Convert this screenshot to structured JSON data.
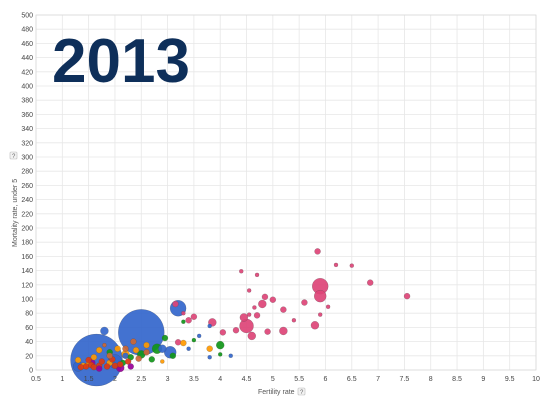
{
  "chart_data": {
    "type": "scatter",
    "year_label": "2013",
    "xlabel": "Fertility rate",
    "ylabel": "Mortality rate, under 5",
    "help_glyph": "?",
    "xlim": [
      0.5,
      10
    ],
    "ylim": [
      0,
      500
    ],
    "x_ticks": [
      "0.5",
      "1",
      "1.5",
      "2",
      "2.5",
      "3",
      "3.5",
      "4",
      "4.5",
      "5",
      "5.5",
      "6",
      "6.5",
      "7",
      "7.5",
      "8",
      "8.5",
      "9",
      "9.5",
      "10"
    ],
    "y_ticks": [
      "0",
      "20",
      "40",
      "60",
      "80",
      "100",
      "120",
      "140",
      "160",
      "180",
      "200",
      "220",
      "240",
      "260",
      "280",
      "300",
      "320",
      "340",
      "360",
      "380",
      "400",
      "420",
      "440",
      "460",
      "480",
      "500"
    ],
    "grid": true,
    "colors": {
      "east_asia_pacific": "#3366cc",
      "africa": "#dd4477",
      "europe_central_asia": "#ff9900",
      "latin_america": "#109618",
      "middle_east": "#cc6633",
      "south_asia": "#990099",
      "other": "#dc3912"
    },
    "bubbles": [
      {
        "x": 1.65,
        "y": 14,
        "r": 26,
        "c": "east_asia_pacific"
      },
      {
        "x": 2.5,
        "y": 53,
        "r": 23,
        "c": "east_asia_pacific"
      },
      {
        "x": 3.2,
        "y": 87,
        "r": 8,
        "c": "east_asia_pacific"
      },
      {
        "x": 1.3,
        "y": 5,
        "r": 5,
        "c": "east_asia_pacific"
      },
      {
        "x": 2.0,
        "y": 12,
        "r": 7,
        "c": "east_asia_pacific"
      },
      {
        "x": 1.8,
        "y": 55,
        "r": 4,
        "c": "east_asia_pacific"
      },
      {
        "x": 2.9,
        "y": 30,
        "r": 4,
        "c": "east_asia_pacific"
      },
      {
        "x": 3.05,
        "y": 25,
        "r": 6,
        "c": "east_asia_pacific"
      },
      {
        "x": 3.4,
        "y": 30,
        "r": 2,
        "c": "east_asia_pacific"
      },
      {
        "x": 3.8,
        "y": 18,
        "r": 2,
        "c": "east_asia_pacific"
      },
      {
        "x": 3.8,
        "y": 62,
        "r": 2,
        "c": "east_asia_pacific"
      },
      {
        "x": 4.2,
        "y": 20,
        "r": 2,
        "c": "east_asia_pacific"
      },
      {
        "x": 3.6,
        "y": 48,
        "r": 2,
        "c": "east_asia_pacific"
      },
      {
        "x": 2.2,
        "y": 20,
        "r": 3,
        "c": "east_asia_pacific"
      },
      {
        "x": 5.9,
        "y": 118,
        "r": 8,
        "c": "africa"
      },
      {
        "x": 5.9,
        "y": 104,
        "r": 6,
        "c": "africa"
      },
      {
        "x": 5.85,
        "y": 167,
        "r": 3,
        "c": "africa"
      },
      {
        "x": 6.2,
        "y": 148,
        "r": 2,
        "c": "africa"
      },
      {
        "x": 6.5,
        "y": 147,
        "r": 2,
        "c": "africa"
      },
      {
        "x": 6.85,
        "y": 123,
        "r": 3,
        "c": "africa"
      },
      {
        "x": 7.55,
        "y": 104,
        "r": 3,
        "c": "africa"
      },
      {
        "x": 4.4,
        "y": 139,
        "r": 2,
        "c": "africa"
      },
      {
        "x": 4.7,
        "y": 134,
        "r": 2,
        "c": "africa"
      },
      {
        "x": 4.55,
        "y": 112,
        "r": 2,
        "c": "africa"
      },
      {
        "x": 4.85,
        "y": 103,
        "r": 3,
        "c": "africa"
      },
      {
        "x": 5.0,
        "y": 99,
        "r": 3,
        "c": "africa"
      },
      {
        "x": 4.8,
        "y": 93,
        "r": 4,
        "c": "africa"
      },
      {
        "x": 4.65,
        "y": 88,
        "r": 2,
        "c": "africa"
      },
      {
        "x": 4.55,
        "y": 78,
        "r": 2,
        "c": "africa"
      },
      {
        "x": 4.7,
        "y": 77,
        "r": 3,
        "c": "africa"
      },
      {
        "x": 4.5,
        "y": 62,
        "r": 7,
        "c": "africa"
      },
      {
        "x": 4.45,
        "y": 74,
        "r": 4,
        "c": "africa"
      },
      {
        "x": 4.3,
        "y": 56,
        "r": 3,
        "c": "africa"
      },
      {
        "x": 4.6,
        "y": 48,
        "r": 4,
        "c": "africa"
      },
      {
        "x": 5.2,
        "y": 85,
        "r": 3,
        "c": "africa"
      },
      {
        "x": 5.6,
        "y": 95,
        "r": 3,
        "c": "africa"
      },
      {
        "x": 5.4,
        "y": 70,
        "r": 2,
        "c": "africa"
      },
      {
        "x": 5.2,
        "y": 55,
        "r": 4,
        "c": "africa"
      },
      {
        "x": 4.9,
        "y": 54,
        "r": 3,
        "c": "africa"
      },
      {
        "x": 5.8,
        "y": 63,
        "r": 4,
        "c": "africa"
      },
      {
        "x": 5.9,
        "y": 78,
        "r": 2,
        "c": "africa"
      },
      {
        "x": 6.05,
        "y": 89,
        "r": 2,
        "c": "africa"
      },
      {
        "x": 3.85,
        "y": 67,
        "r": 4,
        "c": "africa"
      },
      {
        "x": 3.4,
        "y": 70,
        "r": 3,
        "c": "africa"
      },
      {
        "x": 3.15,
        "y": 93,
        "r": 3,
        "c": "africa"
      },
      {
        "x": 4.05,
        "y": 53,
        "r": 3,
        "c": "africa"
      },
      {
        "x": 3.2,
        "y": 39,
        "r": 3,
        "c": "africa"
      },
      {
        "x": 3.3,
        "y": 80,
        "r": 2,
        "c": "africa"
      },
      {
        "x": 3.5,
        "y": 75,
        "r": 3,
        "c": "africa"
      },
      {
        "x": 4.0,
        "y": 35,
        "r": 4,
        "c": "latin_america"
      },
      {
        "x": 2.8,
        "y": 30,
        "r": 5,
        "c": "latin_america"
      },
      {
        "x": 2.5,
        "y": 22,
        "r": 4,
        "c": "latin_america"
      },
      {
        "x": 2.3,
        "y": 18,
        "r": 3,
        "c": "latin_america"
      },
      {
        "x": 2.7,
        "y": 15,
        "r": 3,
        "c": "latin_america"
      },
      {
        "x": 3.5,
        "y": 42,
        "r": 2,
        "c": "latin_america"
      },
      {
        "x": 3.3,
        "y": 68,
        "r": 2,
        "c": "latin_america"
      },
      {
        "x": 2.95,
        "y": 45,
        "r": 3,
        "c": "latin_america"
      },
      {
        "x": 3.1,
        "y": 20,
        "r": 3,
        "c": "latin_america"
      },
      {
        "x": 2.15,
        "y": 10,
        "r": 3,
        "c": "latin_america"
      },
      {
        "x": 1.9,
        "y": 25,
        "r": 3,
        "c": "latin_america"
      },
      {
        "x": 4.0,
        "y": 22,
        "r": 2,
        "c": "latin_america"
      },
      {
        "x": 3.8,
        "y": 30,
        "r": 3,
        "c": "europe_central_asia"
      },
      {
        "x": 3.3,
        "y": 38,
        "r": 3,
        "c": "europe_central_asia"
      },
      {
        "x": 2.2,
        "y": 22,
        "r": 4,
        "c": "europe_central_asia"
      },
      {
        "x": 2.6,
        "y": 35,
        "r": 3,
        "c": "europe_central_asia"
      },
      {
        "x": 1.7,
        "y": 28,
        "r": 3,
        "c": "europe_central_asia"
      },
      {
        "x": 1.5,
        "y": 8,
        "r": 3,
        "c": "europe_central_asia"
      },
      {
        "x": 1.4,
        "y": 6,
        "r": 3,
        "c": "europe_central_asia"
      },
      {
        "x": 1.9,
        "y": 10,
        "r": 3,
        "c": "europe_central_asia"
      },
      {
        "x": 2.05,
        "y": 30,
        "r": 3,
        "c": "europe_central_asia"
      },
      {
        "x": 2.4,
        "y": 28,
        "r": 3,
        "c": "europe_central_asia"
      },
      {
        "x": 1.6,
        "y": 18,
        "r": 3,
        "c": "europe_central_asia"
      },
      {
        "x": 2.9,
        "y": 12,
        "r": 2,
        "c": "europe_central_asia"
      },
      {
        "x": 1.3,
        "y": 14,
        "r": 3,
        "c": "europe_central_asia"
      },
      {
        "x": 1.45,
        "y": 5,
        "r": 3,
        "c": "other"
      },
      {
        "x": 1.55,
        "y": 7,
        "r": 3,
        "c": "other"
      },
      {
        "x": 1.7,
        "y": 6,
        "r": 3,
        "c": "other"
      },
      {
        "x": 1.85,
        "y": 5,
        "r": 3,
        "c": "other"
      },
      {
        "x": 2.0,
        "y": 6,
        "r": 3,
        "c": "other"
      },
      {
        "x": 1.35,
        "y": 4,
        "r": 3,
        "c": "other"
      },
      {
        "x": 1.6,
        "y": 4,
        "r": 3,
        "c": "other"
      },
      {
        "x": 2.1,
        "y": 8,
        "r": 3,
        "c": "other"
      },
      {
        "x": 1.75,
        "y": 12,
        "r": 3,
        "c": "other"
      },
      {
        "x": 1.95,
        "y": 15,
        "r": 3,
        "c": "other"
      },
      {
        "x": 2.25,
        "y": 12,
        "r": 3,
        "c": "other"
      },
      {
        "x": 1.5,
        "y": 14,
        "r": 3,
        "c": "other"
      },
      {
        "x": 1.9,
        "y": 20,
        "r": 3,
        "c": "middle_east"
      },
      {
        "x": 2.2,
        "y": 30,
        "r": 3,
        "c": "middle_east"
      },
      {
        "x": 2.6,
        "y": 25,
        "r": 3,
        "c": "middle_east"
      },
      {
        "x": 2.35,
        "y": 40,
        "r": 3,
        "c": "middle_east"
      },
      {
        "x": 1.8,
        "y": 35,
        "r": 2,
        "c": "middle_east"
      },
      {
        "x": 2.45,
        "y": 16,
        "r": 3,
        "c": "middle_east"
      },
      {
        "x": 1.55,
        "y": 10,
        "r": 4,
        "c": "south_asia"
      },
      {
        "x": 2.1,
        "y": 3,
        "r": 4,
        "c": "south_asia"
      },
      {
        "x": 1.7,
        "y": 2,
        "r": 3,
        "c": "south_asia"
      },
      {
        "x": 2.3,
        "y": 5,
        "r": 3,
        "c": "south_asia"
      }
    ]
  }
}
